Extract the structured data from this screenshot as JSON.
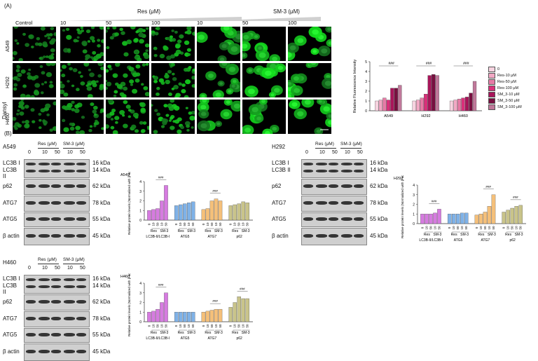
{
  "panelA": {
    "label": "(A)",
    "groups": {
      "res": "Res (μM)",
      "sm3": "SM-3 (μM)"
    },
    "col_labels": [
      "Control",
      "10",
      "50",
      "100",
      "10",
      "50",
      "100"
    ],
    "y_label": "Dansyl",
    "rows": [
      "A549",
      "H292",
      "H460"
    ],
    "chart": {
      "ylabel": "Relative Fluorescence Intensity",
      "yticks": [
        "0",
        "1",
        "2",
        "3",
        "4",
        "5"
      ],
      "categories": [
        "A549",
        "H292",
        "H460"
      ],
      "legend": [
        "0",
        "Res-10 μM",
        "Res-50 μM",
        "Res-100 μM",
        "SM_3-10 μM",
        "SM_3-50 μM",
        "SM_3-100 μM"
      ],
      "colors": [
        "#f7d3e0",
        "#f2a8c4",
        "#e67ba6",
        "#d9307a",
        "#a8155a",
        "#780f40",
        "#c0789a"
      ],
      "annotations": [
        "###",
        "###",
        "###"
      ]
    }
  },
  "chart_data": [
    {
      "type": "bar",
      "ylabel": "Relative Fluorescence Intensity",
      "ylim": [
        0,
        5
      ],
      "categories": [
        "A549",
        "H292",
        "H460"
      ],
      "series": [
        {
          "name": "0",
          "values": [
            1.0,
            1.0,
            1.0
          ]
        },
        {
          "name": "Res-10 μM",
          "values": [
            1.1,
            1.1,
            1.1
          ]
        },
        {
          "name": "Res-50 μM",
          "values": [
            1.3,
            1.3,
            1.2
          ]
        },
        {
          "name": "Res-100 μM",
          "values": [
            1.1,
            1.7,
            1.3
          ]
        },
        {
          "name": "SM_3-10 μM",
          "values": [
            2.3,
            3.6,
            1.4
          ]
        },
        {
          "name": "SM_3-50 μM",
          "values": [
            2.3,
            3.7,
            1.8
          ]
        },
        {
          "name": "SM_3-100 μM",
          "values": [
            2.6,
            3.6,
            3.0
          ]
        }
      ]
    }
  ],
  "panelB": {
    "label": "(B)",
    "blot_groups": {
      "res": "Res (μM)",
      "sm3": "SM-3 (μM)"
    },
    "lanes": [
      "0",
      "10",
      "50",
      "10",
      "50"
    ],
    "blots": [
      {
        "cell": "A549",
        "proteins": [
          "LC3B I",
          "LC3B II",
          "p62",
          "ATG7",
          "ATG5",
          "β actin"
        ],
        "kda": [
          "16 kDa",
          "14 kDa",
          "62 kDa",
          "78 kDa",
          "55 kDa",
          "45 kDa"
        ]
      },
      {
        "cell": "H292",
        "proteins": [
          "LC3B I",
          "LC3B II",
          "p62",
          "ATG7",
          "ATG5",
          "β actin"
        ],
        "kda": [
          "16 kDa",
          "14 kDa",
          "62 kDa",
          "78 kDa",
          "55 kDa",
          "45 kDa"
        ]
      },
      {
        "cell": "H460",
        "proteins": [
          "LC3B I",
          "LC3B II",
          "p62",
          "ATG7",
          "ATG5",
          "β actin"
        ],
        "kda": [
          "16 kDa",
          "14 kDa",
          "62 kDa",
          "78 kDa",
          "55 kDa",
          "45 kDa"
        ]
      }
    ],
    "charts": [
      {
        "title": "A549",
        "ylabel": "Relative protein levels (Normalized with β-actin)",
        "yticks": [
          "0",
          "1",
          "2",
          "3",
          "4"
        ],
        "groups": [
          "LC3B-II/LC3B-I",
          "ATG5",
          "ATG7",
          "p62"
        ],
        "xticks": [
          "0",
          "10",
          "50",
          "10",
          "50"
        ],
        "sub": [
          "Res",
          "SM-3"
        ],
        "colors": [
          "#d67be0",
          "#7fb2e8",
          "#f5c07a",
          "#c9c48a"
        ],
        "values": [
          [
            1.0,
            1.1,
            1.2,
            2.0,
            3.6
          ],
          [
            1.5,
            1.6,
            1.7,
            1.8,
            1.9
          ],
          [
            1.1,
            1.2,
            2.0,
            2.2,
            2.0
          ],
          [
            1.5,
            1.6,
            1.7,
            1.9,
            1.8
          ]
        ]
      },
      {
        "title": "H292",
        "ylabel": "Relative protein levels (Normalized with β-actin)",
        "yticks": [
          "0",
          "1",
          "2",
          "3",
          "4"
        ],
        "groups": [
          "LC3B-II/LC3B-I",
          "ATG5",
          "ATG7",
          "p62"
        ],
        "xticks": [
          "0",
          "10",
          "50",
          "10",
          "50"
        ],
        "sub": [
          "Res",
          "SM-3"
        ],
        "colors": [
          "#d67be0",
          "#7fb2e8",
          "#f5c07a",
          "#c9c48a"
        ],
        "values": [
          [
            1.0,
            1.0,
            1.0,
            1.1,
            1.5
          ],
          [
            1.0,
            1.0,
            1.0,
            1.1,
            1.1
          ],
          [
            0.9,
            1.0,
            1.2,
            1.8,
            3.0
          ],
          [
            1.2,
            1.4,
            1.6,
            1.8,
            1.9
          ]
        ]
      },
      {
        "title": "H460",
        "ylabel": "Relative protein levels (Normalized with β-actin)",
        "yticks": [
          "0",
          "1",
          "2",
          "3",
          "4"
        ],
        "groups": [
          "LC3B-II/LC3B-I",
          "ATG5",
          "ATG7",
          "p62"
        ],
        "xticks": [
          "0",
          "10",
          "50",
          "10",
          "50"
        ],
        "sub": [
          "Res",
          "SM-3"
        ],
        "colors": [
          "#d67be0",
          "#7fb2e8",
          "#f5c07a",
          "#c9c48a"
        ],
        "values": [
          [
            1.0,
            1.1,
            1.3,
            2.0,
            3.0
          ],
          [
            1.0,
            1.0,
            1.0,
            1.0,
            1.0
          ],
          [
            1.0,
            1.1,
            1.2,
            1.3,
            1.3
          ],
          [
            1.5,
            2.0,
            2.6,
            2.4,
            2.4
          ]
        ]
      }
    ],
    "sig": "###"
  }
}
